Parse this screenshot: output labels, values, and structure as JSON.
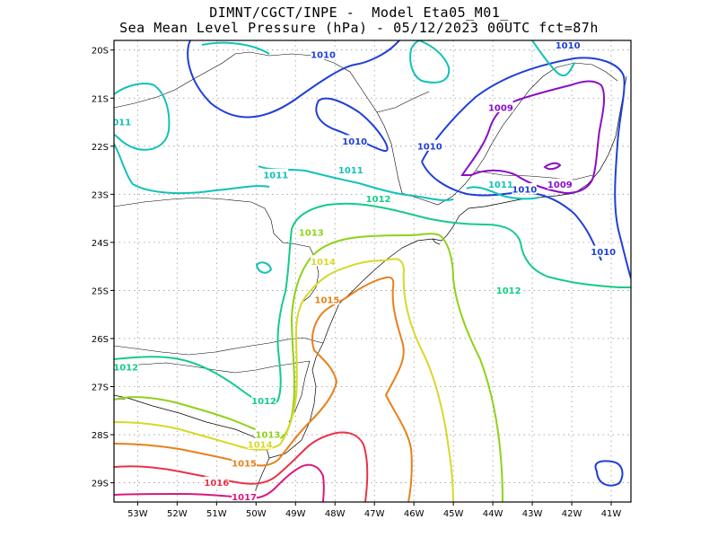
{
  "title": {
    "line1": "DIMNT/CGCT/INPE -  Model Eta05_M01_",
    "line2": "Sea Mean Level Pressure (hPa) - 05/12/2023 00UTC fct=87h"
  },
  "axes": {
    "lat_labels": [
      "20S",
      "21S",
      "22S",
      "23S",
      "24S",
      "25S",
      "26S",
      "27S",
      "28S",
      "29S"
    ],
    "lon_labels": [
      "53W",
      "52W",
      "51W",
      "50W",
      "49W",
      "48W",
      "47W",
      "46W",
      "45W",
      "44W",
      "43W",
      "42W",
      "41W"
    ],
    "lon_range": [
      -53.6,
      -40.5
    ],
    "lat_range": [
      -29.4,
      -19.8
    ],
    "grid": true
  },
  "contour_labels": [
    {
      "text": "1010",
      "lon": -48.3,
      "lat": -20.1,
      "color": "#1f3fd8"
    },
    {
      "text": "1010",
      "lon": -47.5,
      "lat": -21.9,
      "color": "#1f3fd8"
    },
    {
      "text": "1010",
      "lon": -45.6,
      "lat": -22.0,
      "color": "#1f3fd8"
    },
    {
      "text": "1010",
      "lon": -42.1,
      "lat": -19.9,
      "color": "#1f3fd8"
    },
    {
      "text": "1010",
      "lon": -43.2,
      "lat": -22.9,
      "color": "#1f3fd8"
    },
    {
      "text": "1010",
      "lon": -41.2,
      "lat": -24.2,
      "color": "#1f3fd8"
    },
    {
      "text": "1009",
      "lon": -43.8,
      "lat": -21.2,
      "color": "#8a0fc6"
    },
    {
      "text": "1009",
      "lon": -42.3,
      "lat": -22.8,
      "color": "#8a0fc6"
    },
    {
      "text": "011",
      "lon": -53.4,
      "lat": -21.5,
      "color": "#11c2b8"
    },
    {
      "text": "1011",
      "lon": -49.5,
      "lat": -22.6,
      "color": "#11c2b8"
    },
    {
      "text": "1011",
      "lon": -47.6,
      "lat": -22.5,
      "color": "#11c2b8"
    },
    {
      "text": "1011",
      "lon": -43.8,
      "lat": -22.8,
      "color": "#11c2b8"
    },
    {
      "text": "1012",
      "lon": -46.9,
      "lat": -23.1,
      "color": "#13cc86"
    },
    {
      "text": "1012",
      "lon": -43.6,
      "lat": -25.0,
      "color": "#13cc86"
    },
    {
      "text": "1012",
      "lon": -53.3,
      "lat": -26.6,
      "color": "#13cc86"
    },
    {
      "text": "1012",
      "lon": -49.8,
      "lat": -27.3,
      "color": "#13cc86"
    },
    {
      "text": "1013",
      "lon": -48.6,
      "lat": -23.8,
      "color": "#8fd218"
    },
    {
      "text": "1013",
      "lon": -49.7,
      "lat": -28.0,
      "color": "#8fd218"
    },
    {
      "text": "1014",
      "lon": -48.3,
      "lat": -24.4,
      "color": "#d8d82a"
    },
    {
      "text": "1014",
      "lon": -49.9,
      "lat": -28.2,
      "color": "#d8d82a"
    },
    {
      "text": "1015",
      "lon": -48.2,
      "lat": -25.2,
      "color": "#e8801c"
    },
    {
      "text": "1015",
      "lon": -50.3,
      "lat": -28.6,
      "color": "#e8801c"
    },
    {
      "text": "1016",
      "lon": -51.0,
      "lat": -29.0,
      "color": "#e83248"
    },
    {
      "text": "1017",
      "lon": -50.3,
      "lat": -29.3,
      "color": "#d8187e"
    }
  ],
  "colors": {
    "1009": "#8a0fc6",
    "1010": "#1f3fd8",
    "1011": "#11c2b8",
    "1012": "#13cc86",
    "1013": "#8fd218",
    "1014": "#d8d82a",
    "1015": "#e8801c",
    "1016": "#e83248",
    "1017": "#d8187e"
  }
}
